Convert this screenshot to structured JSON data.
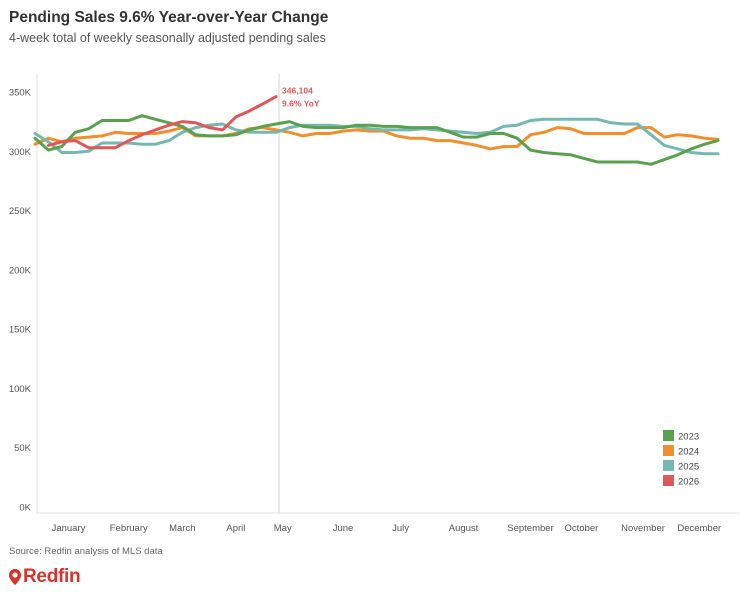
{
  "header": {
    "title": "Pending Sales 9.6% Year-over-Year Change",
    "subtitle": "4-week total of weekly seasonally adjusted pending sales"
  },
  "footer": {
    "source": "Source: Redfin analysis of MLS data",
    "logo_text": "Redfin"
  },
  "colors": {
    "2023": "#59a14f",
    "2024": "#f28e2b",
    "2025": "#76b7b2",
    "2026": "#e15759"
  },
  "chart_data": {
    "type": "line",
    "title": "Pending Sales 9.6% Year-over-Year Change",
    "subtitle": "4-week total of weekly seasonally adjusted pending sales",
    "xlabel": "",
    "ylabel": "",
    "x_unit": "week of year",
    "xlim": [
      1,
      52
    ],
    "ylim": [
      0,
      355000
    ],
    "y_ticks": [
      0,
      50000,
      100000,
      150000,
      200000,
      250000,
      300000,
      350000
    ],
    "y_tick_labels": [
      "0K",
      "50K",
      "100K",
      "150K",
      "200K",
      "250K",
      "300K",
      "350K"
    ],
    "x_tick_labels": [
      "January",
      "February",
      "March",
      "April",
      "May",
      "June",
      "July",
      "August",
      "September",
      "October",
      "November",
      "December"
    ],
    "x_tick_weeks": [
      3.5,
      8,
      12,
      16,
      19.5,
      24,
      28.3,
      33,
      38,
      41.8,
      46.4,
      50.6
    ],
    "grid": false,
    "legend_position": "bottom-right",
    "current_week": 19,
    "annotation": {
      "series": "2026",
      "value_label": "346,104",
      "change_label": "9.6% YoY"
    },
    "series": [
      {
        "name": "2023",
        "x": [
          1,
          2,
          3,
          4,
          5,
          6,
          7,
          8,
          9,
          10,
          11,
          12,
          13,
          14,
          15,
          16,
          17,
          18,
          19,
          20,
          21,
          22,
          23,
          24,
          25,
          26,
          27,
          28,
          29,
          30,
          31,
          32,
          33,
          34,
          35,
          36,
          37,
          38,
          39,
          40,
          41,
          42,
          43,
          44,
          45,
          46,
          47,
          48,
          49,
          50,
          51,
          52
        ],
        "values": [
          311000,
          301000,
          304000,
          316000,
          319000,
          326000,
          326000,
          326000,
          330000,
          327000,
          324000,
          321000,
          314000,
          313000,
          313000,
          314000,
          318000,
          321000,
          323000,
          325000,
          321000,
          320000,
          320000,
          320000,
          322000,
          322000,
          321000,
          321000,
          320000,
          320000,
          320000,
          316000,
          312000,
          312000,
          315000,
          315000,
          311000,
          301000,
          299000,
          298000,
          297000,
          294000,
          291000,
          291000,
          291000,
          291000,
          289000,
          293000,
          297000,
          302000,
          306000,
          309000
        ]
      },
      {
        "name": "2024",
        "x": [
          1,
          2,
          3,
          4,
          5,
          6,
          7,
          8,
          9,
          10,
          11,
          12,
          13,
          14,
          15,
          16,
          17,
          18,
          19,
          20,
          21,
          22,
          23,
          24,
          25,
          26,
          27,
          28,
          29,
          30,
          31,
          32,
          33,
          34,
          35,
          36,
          37,
          38,
          39,
          40,
          41,
          42,
          43,
          44,
          45,
          46,
          47,
          48,
          49,
          50,
          51,
          52
        ],
        "values": [
          306000,
          311000,
          308000,
          311000,
          312000,
          313000,
          316000,
          315000,
          315000,
          315000,
          317000,
          320000,
          313000,
          313000,
          313000,
          315000,
          319000,
          320000,
          318000,
          316000,
          313000,
          315000,
          315000,
          317000,
          318000,
          317000,
          317000,
          313000,
          311000,
          311000,
          309000,
          309000,
          307000,
          305000,
          302000,
          304000,
          304000,
          314000,
          316000,
          320000,
          319000,
          315000,
          315000,
          315000,
          315000,
          320000,
          320000,
          312000,
          314000,
          313000,
          311000,
          310000
        ]
      },
      {
        "name": "2025",
        "x": [
          1,
          2,
          3,
          4,
          5,
          6,
          7,
          8,
          9,
          10,
          11,
          12,
          13,
          14,
          15,
          16,
          17,
          18,
          19,
          20,
          21,
          22,
          23,
          24,
          25,
          26,
          27,
          28,
          29,
          30,
          31,
          32,
          33,
          34,
          35,
          36,
          37,
          38,
          39,
          40,
          41,
          42,
          43,
          44,
          45,
          46,
          47,
          48,
          49,
          50,
          51,
          52
        ],
        "values": [
          315000,
          308000,
          299000,
          299000,
          300000,
          307000,
          307000,
          307000,
          306000,
          306000,
          309000,
          316000,
          320000,
          322000,
          323000,
          318000,
          316000,
          316000,
          316000,
          320000,
          322000,
          322000,
          322000,
          321000,
          321000,
          319000,
          318000,
          318000,
          318000,
          319000,
          318000,
          317000,
          316000,
          315000,
          316000,
          321000,
          322000,
          326000,
          327000,
          327000,
          327000,
          327000,
          327000,
          324000,
          323000,
          323000,
          314000,
          305000,
          302000,
          299000,
          298000,
          298000
        ]
      },
      {
        "name": "2026",
        "x": [
          2,
          3,
          4,
          5,
          6,
          7,
          8,
          9,
          10,
          11,
          12,
          13,
          14,
          15,
          16,
          17,
          18,
          19
        ],
        "values": [
          305000,
          308000,
          309000,
          303000,
          303000,
          303000,
          309000,
          314000,
          318000,
          322000,
          325000,
          324000,
          320000,
          318000,
          329000,
          334000,
          340000,
          346104
        ]
      }
    ]
  }
}
